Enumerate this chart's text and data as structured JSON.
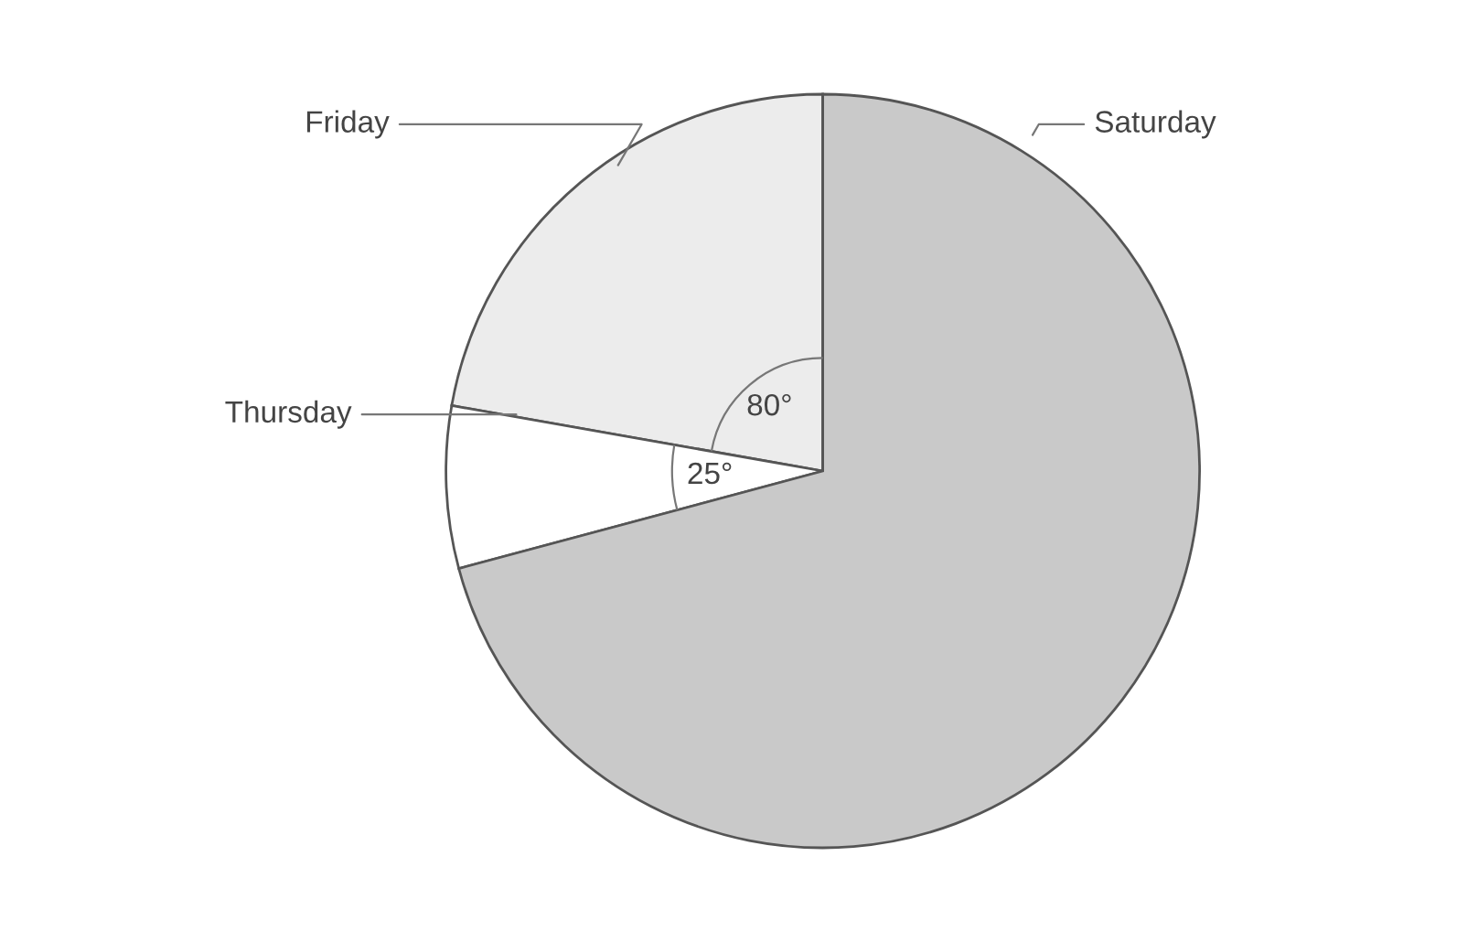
{
  "chart_data": {
    "type": "pie",
    "categories": [
      "Friday",
      "Thursday",
      "Saturday"
    ],
    "values": [
      80,
      25,
      255
    ],
    "colors": [
      "#ececec",
      "#ffffff",
      "#c9c9c9"
    ],
    "value_labels": [
      "80°",
      "25°",
      null
    ]
  }
}
